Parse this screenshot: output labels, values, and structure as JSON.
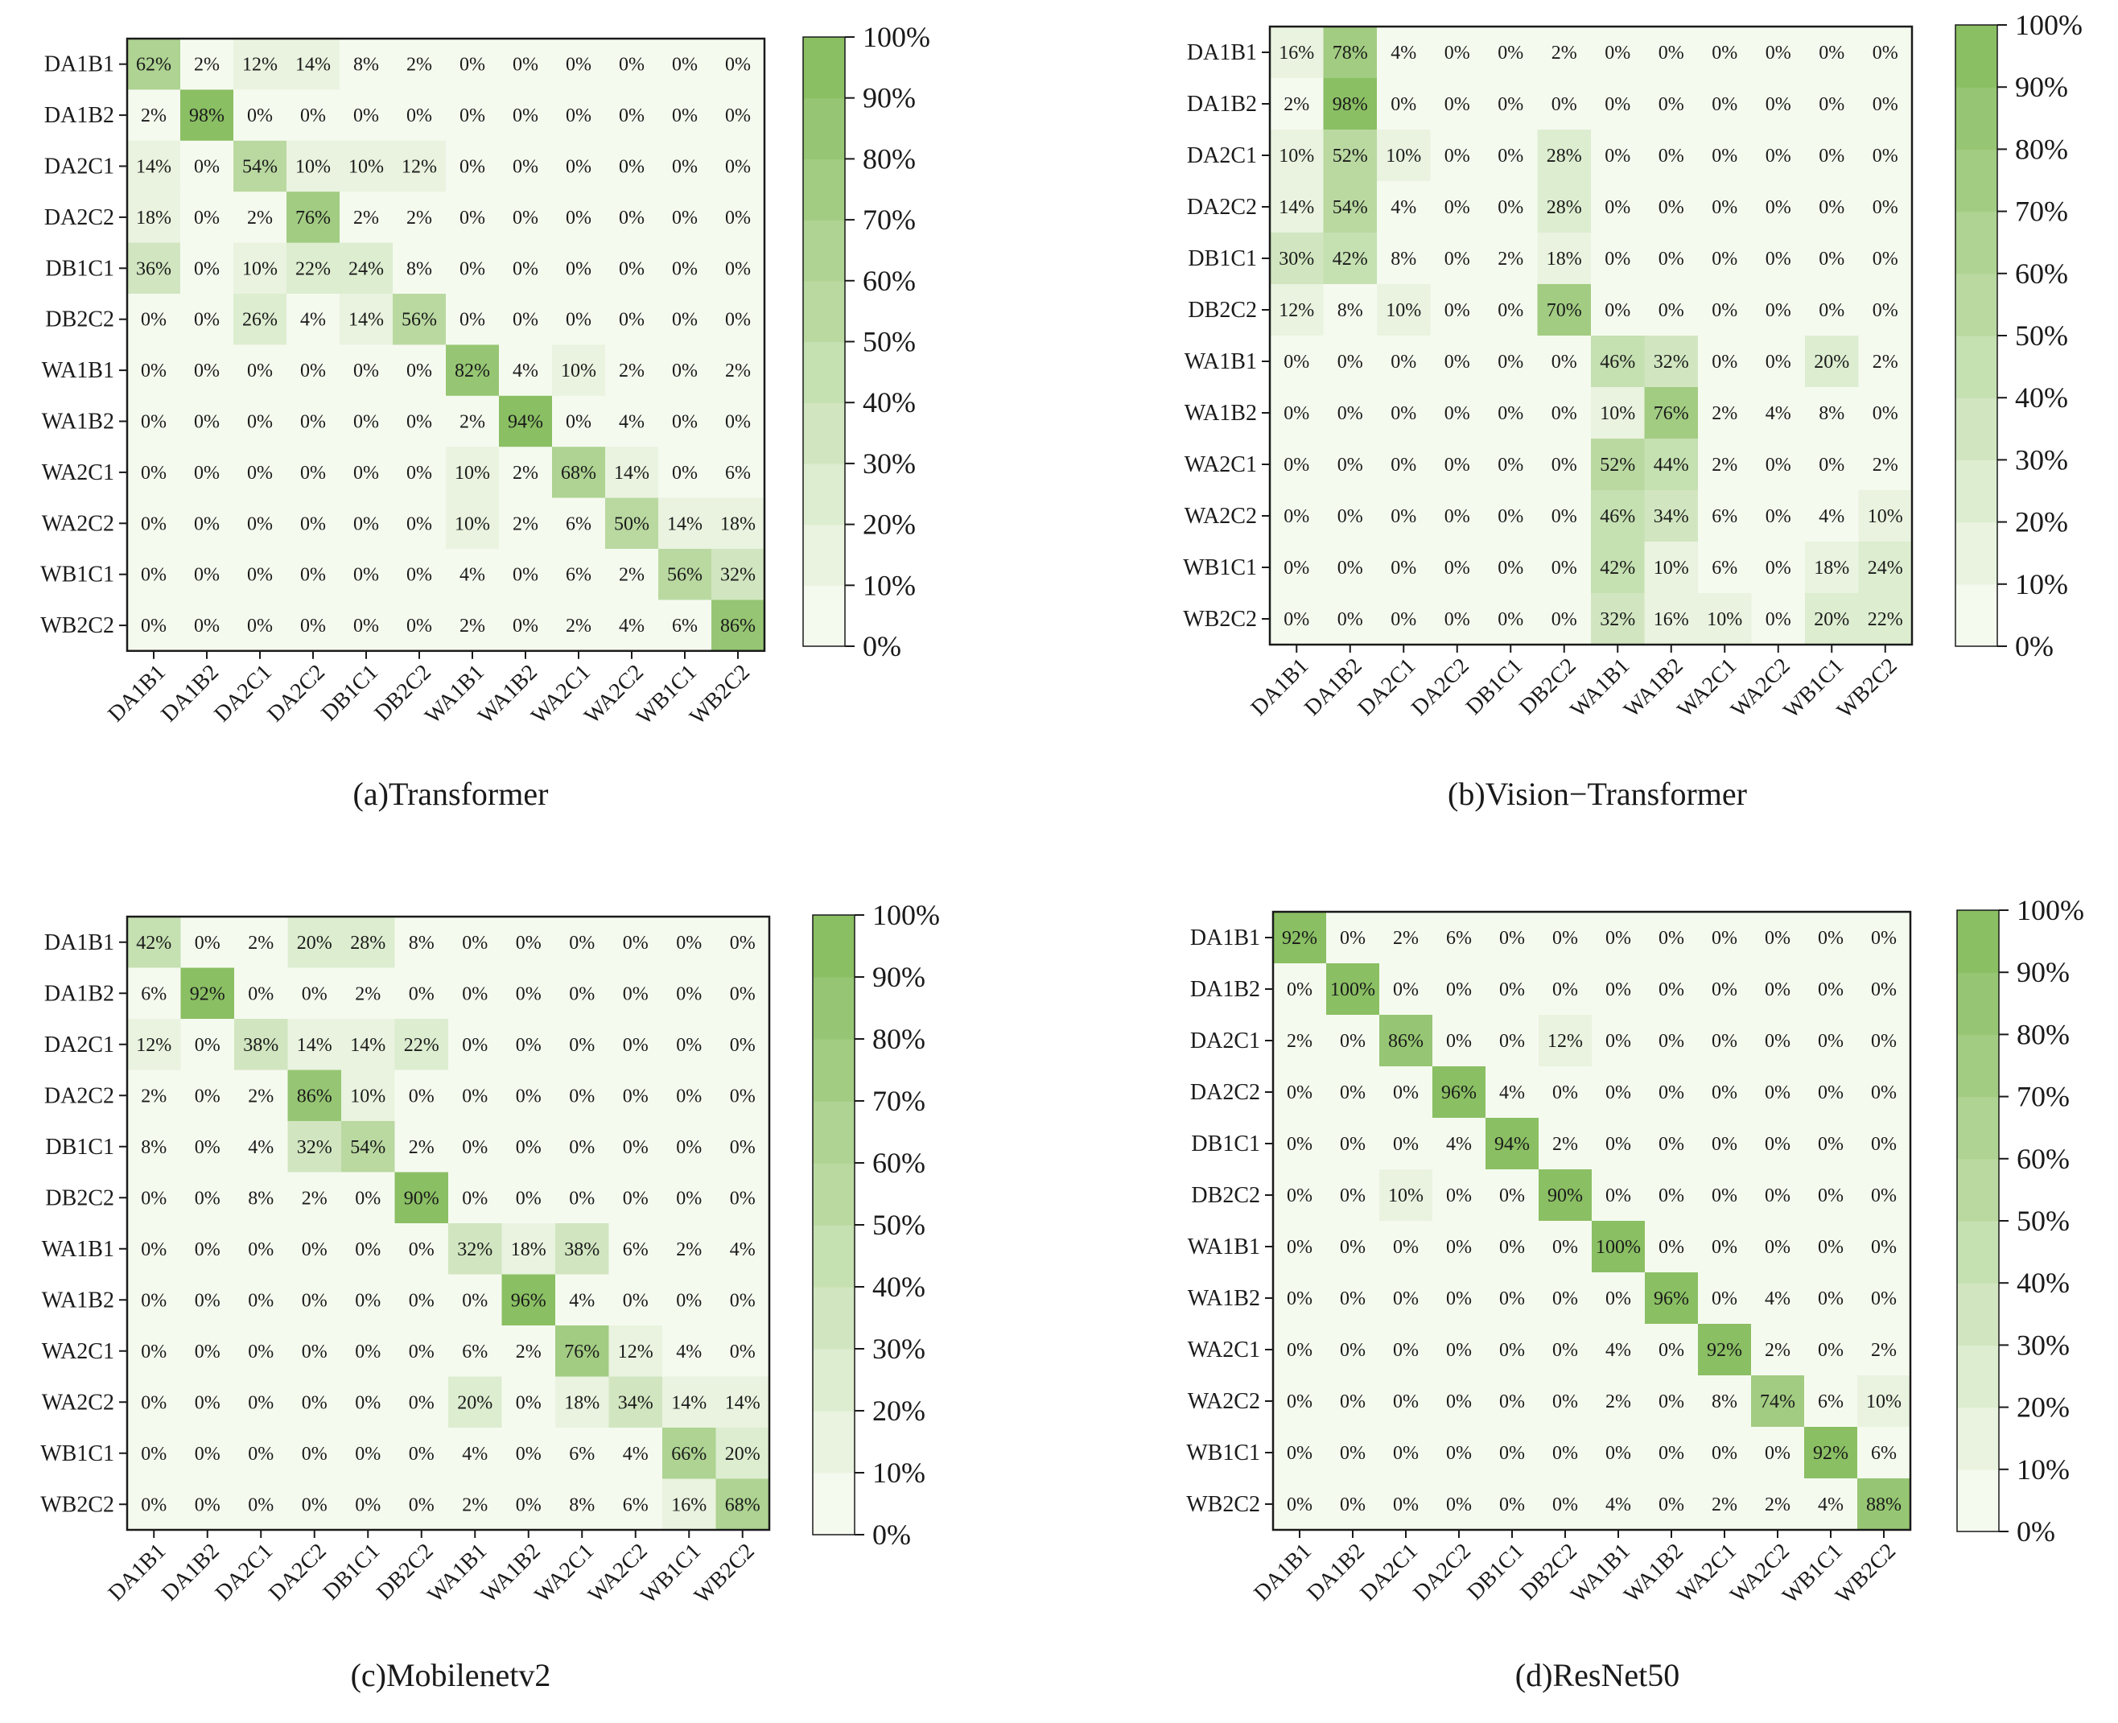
{
  "chart_data": [
    {
      "type": "heatmap",
      "title": "(a)Transformer",
      "row_labels": [
        "DA1B1",
        "DA1B2",
        "DA2C1",
        "DA2C2",
        "DB1C1",
        "DB2C2",
        "WA1B1",
        "WA1B2",
        "WA2C1",
        "WA2C2",
        "WB1C1",
        "WB2C2"
      ],
      "col_labels": [
        "DA1B1",
        "DA1B2",
        "DA2C1",
        "DA2C2",
        "DB1C1",
        "DB2C2",
        "WA1B1",
        "WA1B2",
        "WA2C1",
        "WA2C2",
        "WB1C1",
        "WB2C2"
      ],
      "values": [
        [
          62,
          2,
          12,
          14,
          8,
          2,
          0,
          0,
          0,
          0,
          0,
          0
        ],
        [
          2,
          98,
          0,
          0,
          0,
          0,
          0,
          0,
          0,
          0,
          0,
          0
        ],
        [
          14,
          0,
          54,
          10,
          10,
          12,
          0,
          0,
          0,
          0,
          0,
          0
        ],
        [
          18,
          0,
          2,
          76,
          2,
          2,
          0,
          0,
          0,
          0,
          0,
          0
        ],
        [
          36,
          0,
          10,
          22,
          24,
          8,
          0,
          0,
          0,
          0,
          0,
          0
        ],
        [
          0,
          0,
          26,
          4,
          14,
          56,
          0,
          0,
          0,
          0,
          0,
          0
        ],
        [
          0,
          0,
          0,
          0,
          0,
          0,
          82,
          4,
          10,
          2,
          0,
          2
        ],
        [
          0,
          0,
          0,
          0,
          0,
          0,
          2,
          94,
          0,
          4,
          0,
          0
        ],
        [
          0,
          0,
          0,
          0,
          0,
          0,
          10,
          2,
          68,
          14,
          0,
          6
        ],
        [
          0,
          0,
          0,
          0,
          0,
          0,
          10,
          2,
          6,
          50,
          14,
          18
        ],
        [
          0,
          0,
          0,
          0,
          0,
          0,
          4,
          0,
          6,
          2,
          56,
          32
        ],
        [
          0,
          0,
          0,
          0,
          0,
          0,
          2,
          0,
          2,
          4,
          6,
          86
        ]
      ],
      "value_format": "{v}%",
      "colorbar": {
        "min": 0,
        "max": 100,
        "ticks": [
          "0%",
          "10%",
          "20%",
          "30%",
          "40%",
          "50%",
          "60%",
          "70%",
          "80%",
          "90%",
          "100%"
        ]
      }
    },
    {
      "type": "heatmap",
      "title": "(b)Vision−Transformer",
      "row_labels": [
        "DA1B1",
        "DA1B2",
        "DA2C1",
        "DA2C2",
        "DB1C1",
        "DB2C2",
        "WA1B1",
        "WA1B2",
        "WA2C1",
        "WA2C2",
        "WB1C1",
        "WB2C2"
      ],
      "col_labels": [
        "DA1B1",
        "DA1B2",
        "DA2C1",
        "DA2C2",
        "DB1C1",
        "DB2C2",
        "WA1B1",
        "WA1B2",
        "WA2C1",
        "WA2C2",
        "WB1C1",
        "WB2C2"
      ],
      "values": [
        [
          16,
          78,
          4,
          0,
          0,
          2,
          0,
          0,
          0,
          0,
          0,
          0
        ],
        [
          2,
          98,
          0,
          0,
          0,
          0,
          0,
          0,
          0,
          0,
          0,
          0
        ],
        [
          10,
          52,
          10,
          0,
          0,
          28,
          0,
          0,
          0,
          0,
          0,
          0
        ],
        [
          14,
          54,
          4,
          0,
          0,
          28,
          0,
          0,
          0,
          0,
          0,
          0
        ],
        [
          30,
          42,
          8,
          0,
          2,
          18,
          0,
          0,
          0,
          0,
          0,
          0
        ],
        [
          12,
          8,
          10,
          0,
          0,
          70,
          0,
          0,
          0,
          0,
          0,
          0
        ],
        [
          0,
          0,
          0,
          0,
          0,
          0,
          46,
          32,
          0,
          0,
          20,
          2
        ],
        [
          0,
          0,
          0,
          0,
          0,
          0,
          10,
          76,
          2,
          4,
          8,
          0
        ],
        [
          0,
          0,
          0,
          0,
          0,
          0,
          52,
          44,
          2,
          0,
          0,
          2
        ],
        [
          0,
          0,
          0,
          0,
          0,
          0,
          46,
          34,
          6,
          0,
          4,
          10
        ],
        [
          0,
          0,
          0,
          0,
          0,
          0,
          42,
          10,
          6,
          0,
          18,
          24
        ],
        [
          0,
          0,
          0,
          0,
          0,
          0,
          32,
          16,
          10,
          0,
          20,
          22
        ]
      ],
      "value_format": "{v}%",
      "colorbar": {
        "min": 0,
        "max": 100,
        "ticks": [
          "0%",
          "10%",
          "20%",
          "30%",
          "40%",
          "50%",
          "60%",
          "70%",
          "80%",
          "90%",
          "100%"
        ]
      }
    },
    {
      "type": "heatmap",
      "title": "(c)Mobilenetv2",
      "row_labels": [
        "DA1B1",
        "DA1B2",
        "DA2C1",
        "DA2C2",
        "DB1C1",
        "DB2C2",
        "WA1B1",
        "WA1B2",
        "WA2C1",
        "WA2C2",
        "WB1C1",
        "WB2C2"
      ],
      "col_labels": [
        "DA1B1",
        "DA1B2",
        "DA2C1",
        "DA2C2",
        "DB1C1",
        "DB2C2",
        "WA1B1",
        "WA1B2",
        "WA2C1",
        "WA2C2",
        "WB1C1",
        "WB2C2"
      ],
      "values": [
        [
          42,
          0,
          2,
          20,
          28,
          8,
          0,
          0,
          0,
          0,
          0,
          0
        ],
        [
          6,
          92,
          0,
          0,
          2,
          0,
          0,
          0,
          0,
          0,
          0,
          0
        ],
        [
          12,
          0,
          38,
          14,
          14,
          22,
          0,
          0,
          0,
          0,
          0,
          0
        ],
        [
          2,
          0,
          2,
          86,
          10,
          0,
          0,
          0,
          0,
          0,
          0,
          0
        ],
        [
          8,
          0,
          4,
          32,
          54,
          2,
          0,
          0,
          0,
          0,
          0,
          0
        ],
        [
          0,
          0,
          8,
          2,
          0,
          90,
          0,
          0,
          0,
          0,
          0,
          0
        ],
        [
          0,
          0,
          0,
          0,
          0,
          0,
          32,
          18,
          38,
          6,
          2,
          4
        ],
        [
          0,
          0,
          0,
          0,
          0,
          0,
          0,
          96,
          4,
          0,
          0,
          0
        ],
        [
          0,
          0,
          0,
          0,
          0,
          0,
          6,
          2,
          76,
          12,
          4,
          0
        ],
        [
          0,
          0,
          0,
          0,
          0,
          0,
          20,
          0,
          18,
          34,
          14,
          14
        ],
        [
          0,
          0,
          0,
          0,
          0,
          0,
          4,
          0,
          6,
          4,
          66,
          20
        ],
        [
          0,
          0,
          0,
          0,
          0,
          0,
          2,
          0,
          8,
          6,
          16,
          68
        ]
      ],
      "value_format": "{v}%",
      "colorbar": {
        "min": 0,
        "max": 100,
        "ticks": [
          "0%",
          "10%",
          "20%",
          "30%",
          "40%",
          "50%",
          "60%",
          "70%",
          "80%",
          "90%",
          "100%"
        ]
      }
    },
    {
      "type": "heatmap",
      "title": "(d)ResNet50",
      "row_labels": [
        "DA1B1",
        "DA1B2",
        "DA2C1",
        "DA2C2",
        "DB1C1",
        "DB2C2",
        "WA1B1",
        "WA1B2",
        "WA2C1",
        "WA2C2",
        "WB1C1",
        "WB2C2"
      ],
      "col_labels": [
        "DA1B1",
        "DA1B2",
        "DA2C1",
        "DA2C2",
        "DB1C1",
        "DB2C2",
        "WA1B1",
        "WA1B2",
        "WA2C1",
        "WA2C2",
        "WB1C1",
        "WB2C2"
      ],
      "values": [
        [
          92,
          0,
          2,
          6,
          0,
          0,
          0,
          0,
          0,
          0,
          0,
          0
        ],
        [
          0,
          100,
          0,
          0,
          0,
          0,
          0,
          0,
          0,
          0,
          0,
          0
        ],
        [
          2,
          0,
          86,
          0,
          0,
          12,
          0,
          0,
          0,
          0,
          0,
          0
        ],
        [
          0,
          0,
          0,
          96,
          4,
          0,
          0,
          0,
          0,
          0,
          0,
          0
        ],
        [
          0,
          0,
          0,
          4,
          94,
          2,
          0,
          0,
          0,
          0,
          0,
          0
        ],
        [
          0,
          0,
          10,
          0,
          0,
          90,
          0,
          0,
          0,
          0,
          0,
          0
        ],
        [
          0,
          0,
          0,
          0,
          0,
          0,
          100,
          0,
          0,
          0,
          0,
          0
        ],
        [
          0,
          0,
          0,
          0,
          0,
          0,
          0,
          96,
          0,
          4,
          0,
          0
        ],
        [
          0,
          0,
          0,
          0,
          0,
          0,
          4,
          0,
          92,
          2,
          0,
          2
        ],
        [
          0,
          0,
          0,
          0,
          0,
          0,
          2,
          0,
          8,
          74,
          6,
          10
        ],
        [
          0,
          0,
          0,
          0,
          0,
          0,
          0,
          0,
          0,
          0,
          92,
          6
        ],
        [
          0,
          0,
          0,
          0,
          0,
          0,
          4,
          0,
          2,
          2,
          4,
          88
        ]
      ],
      "value_format": "{v}%",
      "colorbar": {
        "min": 0,
        "max": 100,
        "ticks": [
          "0%",
          "10%",
          "20%",
          "30%",
          "40%",
          "50%",
          "60%",
          "70%",
          "80%",
          "90%",
          "100%"
        ]
      }
    }
  ],
  "colors": {
    "low": "#f5faef",
    "high": "#8abf63",
    "frame": "#1a1a1a",
    "text": "#1a1a1a"
  }
}
